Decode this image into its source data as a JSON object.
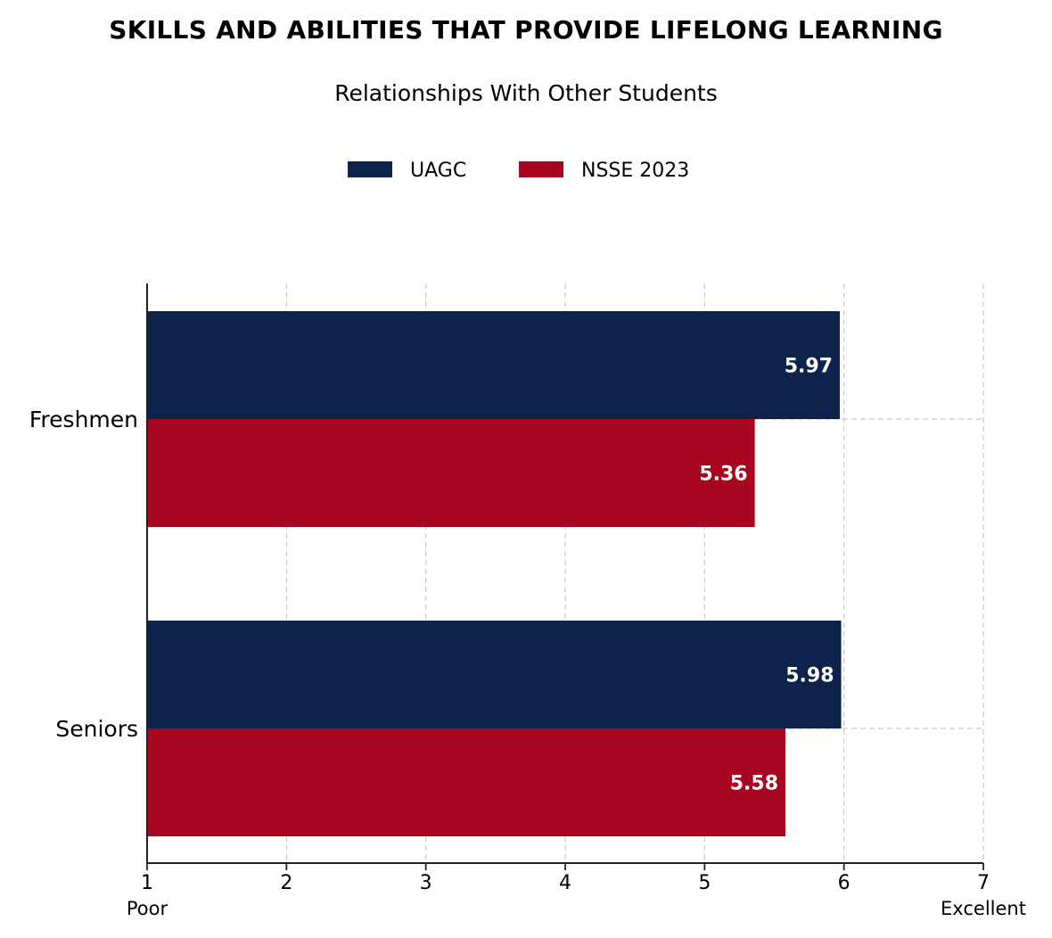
{
  "chart_data": {
    "type": "bar",
    "orientation": "horizontal",
    "title": "SKILLS AND ABILITIES THAT PROVIDE LIFELONG LEARNING",
    "subtitle": "Relationships With Other Students",
    "categories": [
      "Freshmen",
      "Seniors"
    ],
    "series": [
      {
        "name": "UAGC",
        "color": "#0e234b",
        "values": [
          5.97,
          5.98
        ]
      },
      {
        "name": "NSSE 2023",
        "color": "#a80520",
        "values": [
          5.36,
          5.58
        ]
      }
    ],
    "xlim": [
      1,
      7
    ],
    "xticks": [
      1,
      2,
      3,
      4,
      5,
      6,
      7
    ],
    "x_end_labels": {
      "min": "Poor",
      "max": "Excellent"
    },
    "grid": true,
    "legend_position": "top-center"
  },
  "colors": {
    "axis": "#222222",
    "grid": "#c8c8c8",
    "data_label_text": "#ffffff"
  }
}
